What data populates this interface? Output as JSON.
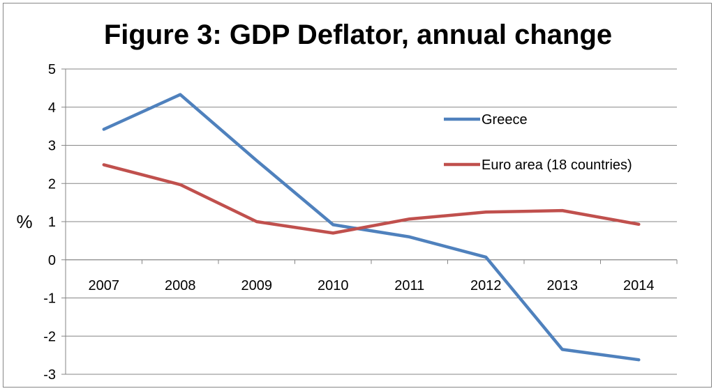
{
  "chart_data": {
    "type": "line",
    "title": "Figure 3: GDP Deflator, annual change",
    "xlabel": "",
    "ylabel": "%",
    "categories": [
      "2007",
      "2008",
      "2009",
      "2010",
      "2011",
      "2012",
      "2013",
      "2014"
    ],
    "y_ticks": [
      "5",
      "4",
      "3",
      "2",
      "1",
      "0",
      "-1",
      "-2",
      "-3"
    ],
    "ylim": [
      -3,
      5
    ],
    "grid": true,
    "legend_position": "right",
    "series": [
      {
        "name": "Greece",
        "color": "#4F81BD",
        "values": [
          3.42,
          4.33,
          2.6,
          0.92,
          0.6,
          0.07,
          -2.35,
          -2.62
        ]
      },
      {
        "name": "Euro area (18 countries)",
        "color": "#C0504D",
        "values": [
          2.49,
          1.97,
          1.0,
          0.7,
          1.07,
          1.25,
          1.29,
          0.93
        ]
      }
    ]
  }
}
